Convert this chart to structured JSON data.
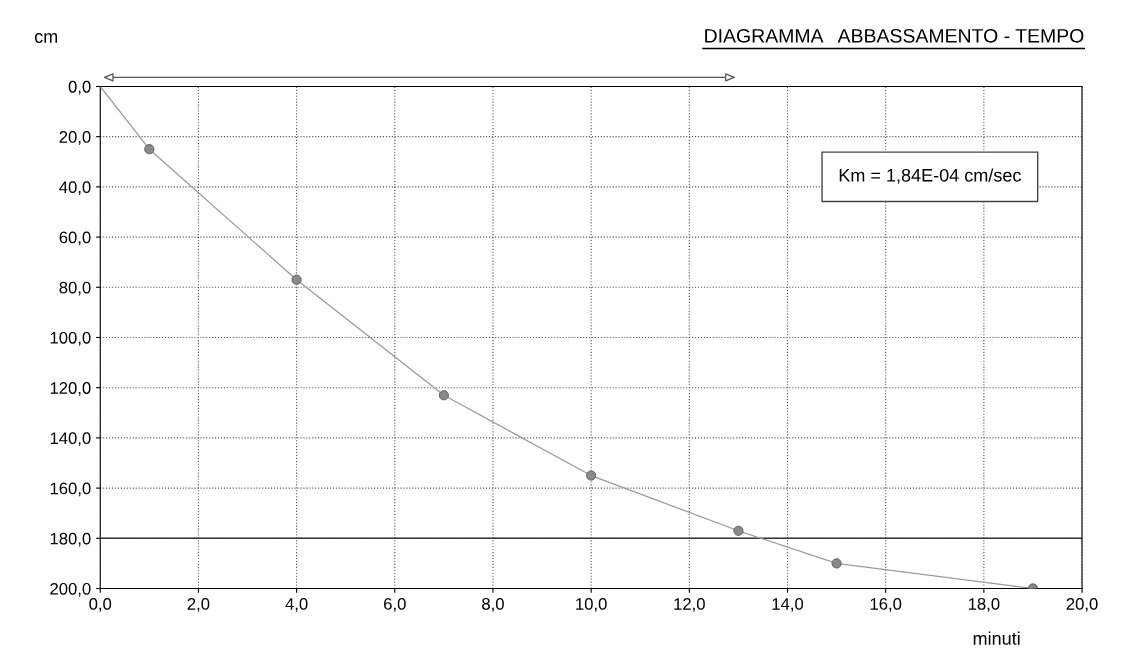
{
  "chart_data": {
    "type": "line",
    "title": "DIAGRAMMA   ABBASSAMENTO - TEMPO",
    "ylabel": "cm",
    "xlabel": "minuti",
    "annotations": [
      "Km = 1,84E-04 cm/sec"
    ],
    "series": [
      {
        "color": "#9a9a9a",
        "x": [
          0,
          1,
          4,
          7,
          10,
          13,
          15,
          19
        ],
        "values": [
          0,
          25,
          77,
          123,
          155,
          177,
          190,
          200
        ],
        "marker": "none"
      },
      {
        "type": "scatter",
        "color": "#8a8a8a",
        "x": [
          1,
          4,
          7,
          10,
          13,
          15,
          19
        ],
        "values": [
          25,
          77,
          123,
          155,
          177,
          190,
          200
        ],
        "marker": "circle"
      }
    ],
    "xlim": [
      0,
      20
    ],
    "xticks": [
      {
        "value": 0,
        "label": "0,0"
      },
      {
        "value": 2,
        "label": "2,0"
      },
      {
        "value": 4,
        "label": "4,0"
      },
      {
        "value": 6,
        "label": "6,0"
      },
      {
        "value": 8,
        "label": "8,0"
      },
      {
        "value": 10,
        "label": "10,0"
      },
      {
        "value": 12,
        "label": "12,0"
      },
      {
        "value": 14,
        "label": "14,0"
      },
      {
        "value": 16,
        "label": "16,0"
      },
      {
        "value": 18,
        "label": "18,0"
      },
      {
        "value": 20,
        "label": "20,0"
      }
    ],
    "ylim": [
      200,
      0
    ],
    "yticks": [
      {
        "value": 0,
        "label": "0,0"
      },
      {
        "value": 20,
        "label": "20,0"
      },
      {
        "value": 40,
        "label": "40,0"
      },
      {
        "value": 60,
        "label": "60,0"
      },
      {
        "value": 80,
        "label": "80,0"
      },
      {
        "value": 100,
        "label": "100,0"
      },
      {
        "value": 120,
        "label": "120,0"
      },
      {
        "value": 140,
        "label": "140,0"
      },
      {
        "value": 160,
        "label": "160,0"
      },
      {
        "value": 180,
        "label": "180,0"
      },
      {
        "value": 200,
        "label": "200,0"
      }
    ],
    "grid": true,
    "ref_lines": [
      {
        "axis": "y",
        "value": 180,
        "color": "#333333",
        "line_style": "solid"
      }
    ]
  }
}
